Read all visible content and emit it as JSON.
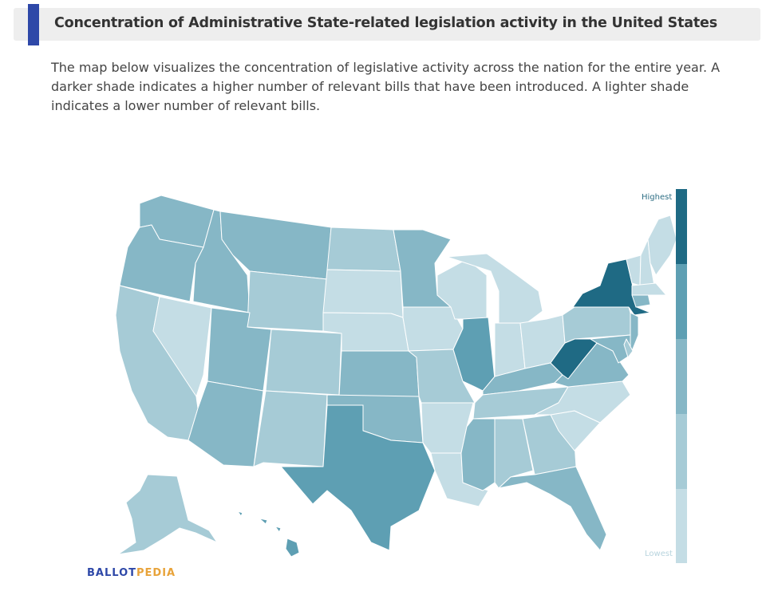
{
  "header": {
    "title": "Concentration of Administrative State-related legislation activity in the United States"
  },
  "description": "The map below visualizes the concentration of legislative activity across the nation for the entire year. A darker shade indicates a higher number of relevant bills that have been introduced. A lighter shade indicates a lower number of relevant bills.",
  "legend": {
    "high_label": "Highest",
    "low_label": "Lowest",
    "colors": [
      "#1f6a84",
      "#5e9fb3",
      "#86b7c6",
      "#a6cbd6",
      "#c4dde5"
    ]
  },
  "brand": {
    "part1": "BALLOT",
    "part2": "PEDIA",
    "color1": "#2e48a8",
    "color2": "#e8a33a"
  },
  "map": {
    "regions": [
      {
        "id": "WA",
        "level": 2
      },
      {
        "id": "OR",
        "level": 2
      },
      {
        "id": "CA",
        "level": 3
      },
      {
        "id": "NV",
        "level": 4
      },
      {
        "id": "ID",
        "level": 2
      },
      {
        "id": "MT",
        "level": 2
      },
      {
        "id": "WY",
        "level": 3
      },
      {
        "id": "UT",
        "level": 2
      },
      {
        "id": "AZ",
        "level": 2
      },
      {
        "id": "CO",
        "level": 3
      },
      {
        "id": "NM",
        "level": 3
      },
      {
        "id": "ND",
        "level": 3
      },
      {
        "id": "SD",
        "level": 4
      },
      {
        "id": "NE",
        "level": 4
      },
      {
        "id": "KS",
        "level": 2
      },
      {
        "id": "OK",
        "level": 2
      },
      {
        "id": "TX",
        "level": 1
      },
      {
        "id": "MN",
        "level": 2
      },
      {
        "id": "IA",
        "level": 4
      },
      {
        "id": "MO",
        "level": 3
      },
      {
        "id": "AR",
        "level": 4
      },
      {
        "id": "LA",
        "level": 4
      },
      {
        "id": "WI",
        "level": 4
      },
      {
        "id": "IL",
        "level": 1
      },
      {
        "id": "MI",
        "level": 4
      },
      {
        "id": "IN",
        "level": 4
      },
      {
        "id": "OH",
        "level": 4
      },
      {
        "id": "KY",
        "level": 2
      },
      {
        "id": "TN",
        "level": 3
      },
      {
        "id": "MS",
        "level": 2
      },
      {
        "id": "AL",
        "level": 3
      },
      {
        "id": "GA",
        "level": 3
      },
      {
        "id": "FL",
        "level": 2
      },
      {
        "id": "SC",
        "level": 4
      },
      {
        "id": "NC",
        "level": 4
      },
      {
        "id": "VA",
        "level": 2
      },
      {
        "id": "WV",
        "level": 0
      },
      {
        "id": "PA",
        "level": 3
      },
      {
        "id": "NY",
        "level": 0
      },
      {
        "id": "NJ",
        "level": 2
      },
      {
        "id": "MD",
        "level": 2
      },
      {
        "id": "DE",
        "level": 3
      },
      {
        "id": "CT",
        "level": 2
      },
      {
        "id": "VT",
        "level": 4
      },
      {
        "id": "NH",
        "level": 4
      },
      {
        "id": "ME",
        "level": 4
      },
      {
        "id": "MA",
        "level": 4
      },
      {
        "id": "AK",
        "level": 3
      },
      {
        "id": "HI",
        "level": 1
      }
    ]
  }
}
